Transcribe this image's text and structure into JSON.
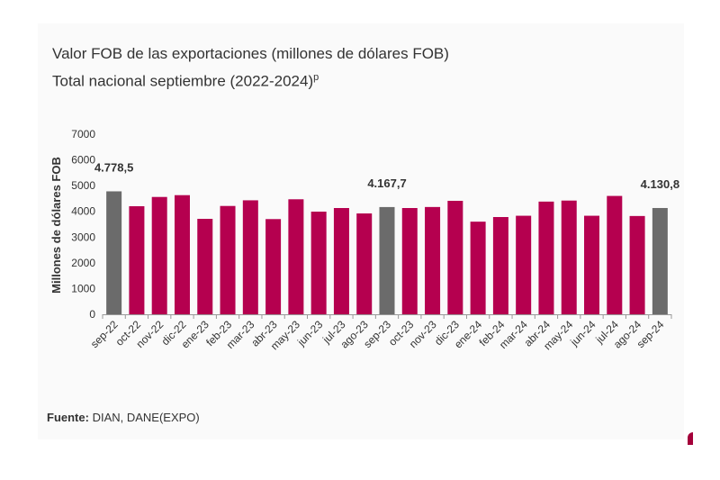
{
  "title_line1": "Valor FOB de las exportaciones (millones de dólares FOB)",
  "title_line2": "Total nacional septiembre (2022-2024)",
  "title_superscript": "p",
  "source_label": "Fuente:",
  "source_text": " DIAN, DANE(EXPO)",
  "colors": {
    "highlight": "#6b6b6b",
    "bar": "#b5004f",
    "axis": "#999999",
    "text": "#333333"
  },
  "chart_data": {
    "type": "bar",
    "title": "Valor FOB de las exportaciones (millones de dólares FOB)",
    "subtitle": "Total nacional septiembre (2022-2024)",
    "xlabel": "",
    "ylabel": "Millones de dólares FOB",
    "ylim": [
      0,
      7000
    ],
    "yticks": [
      "0",
      "1000",
      "2000",
      "3000",
      "4000",
      "5000",
      "6000",
      "7000"
    ],
    "grid": false,
    "categories": [
      "sep-22",
      "oct-22",
      "nov-22",
      "dic-22",
      "ene-23",
      "feb-23",
      "mar-23",
      "abr-23",
      "may-23",
      "jun-23",
      "jul-23",
      "ago-23",
      "sep-23",
      "oct-23",
      "nov-23",
      "dic-23",
      "ene-24",
      "feb-24",
      "mar-24",
      "abr-24",
      "may-24",
      "jun-24",
      "jul-24",
      "ago-24",
      "sep-24"
    ],
    "values": [
      4778.5,
      4200,
      4560,
      4630,
      3710,
      4210,
      4430,
      3700,
      4470,
      3990,
      4130,
      3920,
      4167.7,
      4130,
      4170,
      4410,
      3600,
      3780,
      3830,
      4380,
      4420,
      3830,
      4600,
      3820,
      4130.8
    ],
    "highlighted": [
      true,
      false,
      false,
      false,
      false,
      false,
      false,
      false,
      false,
      false,
      false,
      false,
      true,
      false,
      false,
      false,
      false,
      false,
      false,
      false,
      false,
      false,
      false,
      false,
      true
    ],
    "data_labels": [
      {
        "index": 0,
        "text": "4.778,5"
      },
      {
        "index": 12,
        "text": "4.167,7"
      },
      {
        "index": 24,
        "text": "4.130,8"
      }
    ]
  }
}
